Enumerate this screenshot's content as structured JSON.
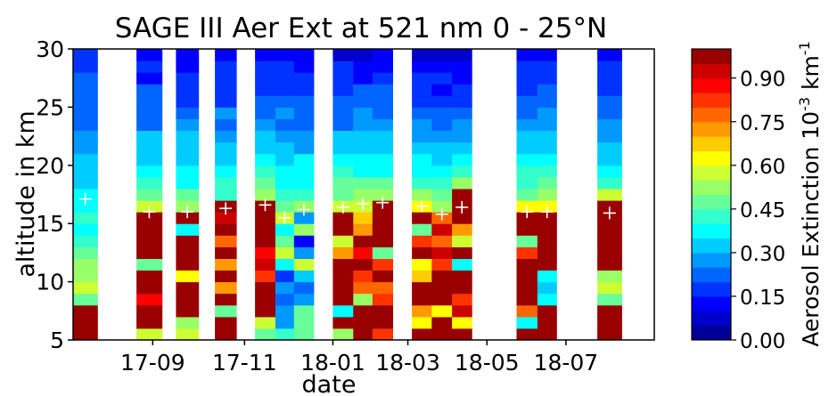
{
  "chart_data": {
    "type": "heatmap",
    "title": "SAGE III Aer Ext at 521 nm 0 - 25°N",
    "xlabel": "date",
    "ylabel": "altitude in km",
    "colorbar_label": "Aerosol Extinction 10⁻³ km⁻¹",
    "colorbar_label_parts": {
      "base": "Aerosol Extinction 10",
      "exp1": "-3",
      "mid": " km",
      "exp2": "-1"
    },
    "x_tick_labels": [
      "17-09",
      "17-11",
      "18-01",
      "18-03",
      "18-05",
      "18-07"
    ],
    "y_ticks": [
      5,
      10,
      15,
      20,
      25,
      30
    ],
    "ylim": [
      5,
      30
    ],
    "colorbar_ticks": [
      "0.00",
      "0.15",
      "0.30",
      "0.45",
      "0.60",
      "0.75",
      "0.90"
    ],
    "colorbar_range": [
      0,
      1.0
    ],
    "colormap": "jet",
    "marker": "+",
    "columns": [
      {
        "x_start": 0.0,
        "x_end": 0.042,
        "tropopause_km": 17.1,
        "top": 0.15,
        "bottom": 0.62,
        "bottom_km": 9.0,
        "cloud": "low"
      },
      {
        "x_start": 0.109,
        "x_end": 0.153,
        "tropopause_km": 16.0,
        "top": 0.12,
        "bottom": 0.55,
        "bottom_km": 16.4,
        "cloud": "mixed"
      },
      {
        "x_start": 0.177,
        "x_end": 0.216,
        "tropopause_km": 16.0,
        "top": 0.12,
        "bottom": 0.55,
        "bottom_km": 16.4,
        "cloud": "mixed"
      },
      {
        "x_start": 0.244,
        "x_end": 0.281,
        "tropopause_km": 16.3,
        "top": 0.12,
        "bottom": 0.5,
        "bottom_km": 17.2,
        "cloud": "mixed"
      },
      {
        "x_start": 0.313,
        "x_end": 0.348,
        "tropopause_km": 16.6,
        "top": 0.12,
        "bottom": 0.6,
        "bottom_km": 16.6,
        "cloud": "mixed"
      },
      {
        "x_start": 0.348,
        "x_end": 0.38,
        "tropopause_km": 15.5,
        "top": 0.15,
        "bottom": 0.55,
        "bottom_km": 15.5,
        "cloud": "heavy"
      },
      {
        "x_start": 0.38,
        "x_end": 0.414,
        "tropopause_km": 16.2,
        "top": 0.12,
        "bottom": 0.55,
        "bottom_km": 16.2,
        "cloud": "heavy"
      },
      {
        "x_start": 0.447,
        "x_end": 0.482,
        "tropopause_km": 16.4,
        "top": 0.1,
        "bottom": 0.6,
        "bottom_km": 16.4,
        "cloud": "mixed"
      },
      {
        "x_start": 0.482,
        "x_end": 0.515,
        "tropopause_km": 16.7,
        "top": 0.1,
        "bottom": 0.62,
        "bottom_km": 16.4,
        "cloud": "mixed"
      },
      {
        "x_start": 0.515,
        "x_end": 0.55,
        "tropopause_km": 16.8,
        "top": 0.1,
        "bottom": 0.62,
        "bottom_km": 16.8,
        "cloud": "mixed"
      },
      {
        "x_start": 0.583,
        "x_end": 0.617,
        "tropopause_km": 16.5,
        "top": 0.08,
        "bottom": 0.6,
        "bottom_km": 16.5,
        "cloud": "mixed"
      },
      {
        "x_start": 0.617,
        "x_end": 0.652,
        "tropopause_km": 15.8,
        "top": 0.08,
        "bottom": 0.6,
        "bottom_km": 16.0,
        "cloud": "mixed"
      },
      {
        "x_start": 0.652,
        "x_end": 0.686,
        "tropopause_km": 16.4,
        "top": 0.08,
        "bottom": 0.6,
        "bottom_km": 17.8,
        "cloud": "mixed"
      },
      {
        "x_start": 0.763,
        "x_end": 0.799,
        "tropopause_km": 16.0,
        "top": 0.12,
        "bottom": 0.62,
        "bottom_km": 16.5,
        "cloud": "mixed"
      },
      {
        "x_start": 0.799,
        "x_end": 0.832,
        "tropopause_km": 16.0,
        "top": 0.12,
        "bottom": 0.62,
        "bottom_km": 16.5,
        "cloud": "low"
      },
      {
        "x_start": 0.902,
        "x_end": 0.944,
        "tropopause_km": 15.9,
        "top": 0.1,
        "bottom": 0.55,
        "bottom_km": 17.5,
        "cloud": "low"
      }
    ]
  }
}
